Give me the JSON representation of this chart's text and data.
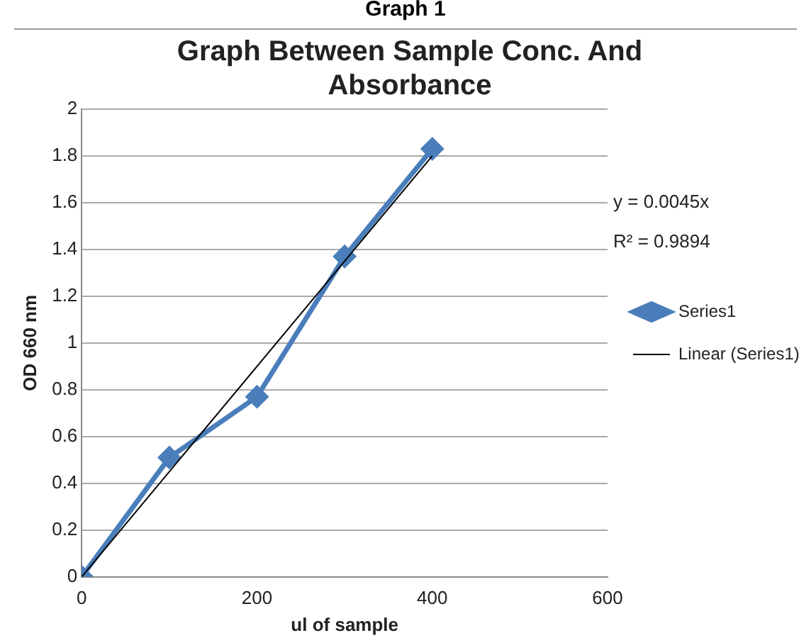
{
  "chart_data": {
    "type": "line",
    "title": [
      "Graph Between Sample Conc. And",
      "Absorbance"
    ],
    "xlabel": "ul of sample",
    "ylabel": "OD 660 nm",
    "x": [
      0,
      100,
      200,
      300,
      400
    ],
    "series": [
      {
        "name": "Series1",
        "color": "#4a7ebb",
        "values": [
          0,
          0.51,
          0.77,
          1.37,
          1.83
        ],
        "marker": "diamond"
      },
      {
        "name": "Linear (Series1)",
        "type": "line",
        "color": "#000000",
        "x": [
          0,
          400
        ],
        "values": [
          0,
          1.8
        ],
        "marker": "none"
      }
    ],
    "xlim": [
      0,
      600
    ],
    "xticks": [
      0,
      200,
      400,
      600
    ],
    "ylim": [
      0,
      2
    ],
    "yticks": [
      0,
      0.2,
      0.4,
      0.6,
      0.8,
      1,
      1.2,
      1.4,
      1.6,
      1.8,
      2
    ],
    "grid": "y",
    "legend": "right",
    "line_style": "solid",
    "annotations": [
      "Graph 1",
      "y = 0.0045x",
      "R² = 0.9894"
    ]
  }
}
